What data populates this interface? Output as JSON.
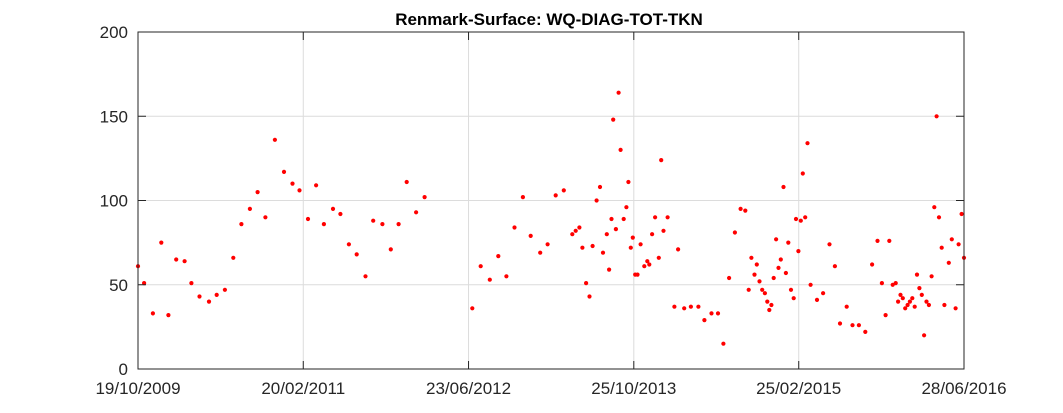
{
  "chart_data": {
    "type": "scatter",
    "title": "Renmark-Surface: WQ-DIAG-TOT-TKN",
    "xlabel": "",
    "ylabel": "",
    "xlim": [
      "2009-10-19",
      "2016-06-28"
    ],
    "ylim": [
      0,
      200
    ],
    "x_ticks": [
      "2009-10-19",
      "2011-02-20",
      "2012-06-23",
      "2013-10-25",
      "2015-02-25",
      "2016-06-28"
    ],
    "x_tick_labels": [
      "19/10/2009",
      "20/02/2011",
      "23/06/2012",
      "25/10/2013",
      "25/02/2015",
      "28/06/2016"
    ],
    "y_ticks": [
      0,
      50,
      100,
      150,
      200
    ],
    "y_tick_labels": [
      "0",
      "50",
      "100",
      "150",
      "200"
    ],
    "grid": true,
    "marker_color": "#ff0000",
    "series": [
      {
        "points": [
          [
            "2009-10-19",
            61
          ],
          [
            "2009-11-06",
            51
          ],
          [
            "2009-12-02",
            33
          ],
          [
            "2009-12-27",
            75
          ],
          [
            "2010-01-17",
            32
          ],
          [
            "2010-02-09",
            65
          ],
          [
            "2010-03-06",
            64
          ],
          [
            "2010-03-26",
            51
          ],
          [
            "2010-04-19",
            43
          ],
          [
            "2010-05-17",
            40
          ],
          [
            "2010-06-09",
            44
          ],
          [
            "2010-07-03",
            47
          ],
          [
            "2010-07-28",
            66
          ],
          [
            "2010-08-21",
            86
          ],
          [
            "2010-09-15",
            95
          ],
          [
            "2010-10-08",
            105
          ],
          [
            "2010-10-31",
            90
          ],
          [
            "2010-11-28",
            136
          ],
          [
            "2010-12-25",
            117
          ],
          [
            "2011-01-19",
            110
          ],
          [
            "2011-02-09",
            106
          ],
          [
            "2011-03-06",
            89
          ],
          [
            "2011-03-30",
            109
          ],
          [
            "2011-04-22",
            86
          ],
          [
            "2011-05-19",
            95
          ],
          [
            "2011-06-10",
            92
          ],
          [
            "2011-07-05",
            74
          ],
          [
            "2011-07-28",
            68
          ],
          [
            "2011-08-23",
            55
          ],
          [
            "2011-09-15",
            88
          ],
          [
            "2011-10-12",
            86
          ],
          [
            "2011-11-06",
            71
          ],
          [
            "2011-11-29",
            86
          ],
          [
            "2011-12-23",
            111
          ],
          [
            "2012-01-20",
            93
          ],
          [
            "2012-02-14",
            102
          ],
          [
            "2012-07-04",
            36
          ],
          [
            "2012-07-29",
            61
          ],
          [
            "2012-08-25",
            53
          ],
          [
            "2012-09-19",
            67
          ],
          [
            "2012-10-13",
            55
          ],
          [
            "2012-11-06",
            84
          ],
          [
            "2012-12-01",
            102
          ],
          [
            "2012-12-24",
            79
          ],
          [
            "2013-01-21",
            69
          ],
          [
            "2013-02-12",
            74
          ],
          [
            "2013-03-08",
            103
          ],
          [
            "2013-04-01",
            106
          ],
          [
            "2013-04-26",
            80
          ],
          [
            "2013-05-06",
            82
          ],
          [
            "2013-05-17",
            84
          ],
          [
            "2013-05-26",
            72
          ],
          [
            "2013-06-06",
            51
          ],
          [
            "2013-06-16",
            43
          ],
          [
            "2013-06-25",
            73
          ],
          [
            "2013-07-07",
            100
          ],
          [
            "2013-07-17",
            108
          ],
          [
            "2013-07-26",
            69
          ],
          [
            "2013-08-06",
            80
          ],
          [
            "2013-08-13",
            59
          ],
          [
            "2013-08-20",
            89
          ],
          [
            "2013-08-25",
            148
          ],
          [
            "2013-09-02",
            83
          ],
          [
            "2013-09-10",
            164
          ],
          [
            "2013-09-16",
            130
          ],
          [
            "2013-09-25",
            89
          ],
          [
            "2013-10-03",
            96
          ],
          [
            "2013-10-09",
            111
          ],
          [
            "2013-10-16",
            72
          ],
          [
            "2013-10-22",
            78
          ],
          [
            "2013-10-29",
            56
          ],
          [
            "2013-11-05",
            56
          ],
          [
            "2013-11-14",
            74
          ],
          [
            "2013-11-25",
            61
          ],
          [
            "2013-12-04",
            64
          ],
          [
            "2013-12-10",
            62
          ],
          [
            "2013-12-18",
            80
          ],
          [
            "2013-12-27",
            90
          ],
          [
            "2014-01-07",
            66
          ],
          [
            "2014-01-14",
            124
          ],
          [
            "2014-01-21",
            82
          ],
          [
            "2014-02-02",
            90
          ],
          [
            "2014-02-22",
            37
          ],
          [
            "2014-03-05",
            71
          ],
          [
            "2014-03-23",
            36
          ],
          [
            "2014-04-12",
            37
          ],
          [
            "2014-05-04",
            37
          ],
          [
            "2014-05-22",
            29
          ],
          [
            "2014-06-12",
            33
          ],
          [
            "2014-07-01",
            33
          ],
          [
            "2014-07-17",
            15
          ],
          [
            "2014-08-03",
            54
          ],
          [
            "2014-08-20",
            81
          ],
          [
            "2014-09-06",
            95
          ],
          [
            "2014-09-20",
            94
          ],
          [
            "2014-09-30",
            47
          ],
          [
            "2014-10-08",
            66
          ],
          [
            "2014-10-17",
            56
          ],
          [
            "2014-10-24",
            62
          ],
          [
            "2014-11-01",
            52
          ],
          [
            "2014-11-09",
            47
          ],
          [
            "2014-11-17",
            45
          ],
          [
            "2014-11-24",
            40
          ],
          [
            "2014-11-30",
            35
          ],
          [
            "2014-12-06",
            38
          ],
          [
            "2014-12-13",
            54
          ],
          [
            "2014-12-20",
            77
          ],
          [
            "2014-12-27",
            60
          ],
          [
            "2015-01-03",
            65
          ],
          [
            "2015-01-11",
            108
          ],
          [
            "2015-01-18",
            57
          ],
          [
            "2015-01-25",
            75
          ],
          [
            "2015-02-02",
            47
          ],
          [
            "2015-02-10",
            42
          ],
          [
            "2015-02-17",
            89
          ],
          [
            "2015-02-24",
            70
          ],
          [
            "2015-03-03",
            88
          ],
          [
            "2015-03-09",
            116
          ],
          [
            "2015-03-16",
            90
          ],
          [
            "2015-03-23",
            134
          ],
          [
            "2015-04-01",
            50
          ],
          [
            "2015-04-20",
            41
          ],
          [
            "2015-05-08",
            45
          ],
          [
            "2015-05-27",
            74
          ],
          [
            "2015-06-12",
            61
          ],
          [
            "2015-06-27",
            27
          ],
          [
            "2015-07-17",
            37
          ],
          [
            "2015-08-03",
            26
          ],
          [
            "2015-08-22",
            26
          ],
          [
            "2015-09-10",
            22
          ],
          [
            "2015-09-30",
            62
          ],
          [
            "2015-10-16",
            76
          ],
          [
            "2015-10-29",
            51
          ],
          [
            "2015-11-09",
            32
          ],
          [
            "2015-11-20",
            76
          ],
          [
            "2015-11-30",
            50
          ],
          [
            "2015-12-09",
            51
          ],
          [
            "2015-12-16",
            40
          ],
          [
            "2015-12-23",
            44
          ],
          [
            "2015-12-30",
            42
          ],
          [
            "2016-01-06",
            36
          ],
          [
            "2016-01-13",
            38
          ],
          [
            "2016-01-20",
            40
          ],
          [
            "2016-01-27",
            42
          ],
          [
            "2016-02-03",
            37
          ],
          [
            "2016-02-10",
            56
          ],
          [
            "2016-02-17",
            48
          ],
          [
            "2016-02-24",
            44
          ],
          [
            "2016-03-02",
            20
          ],
          [
            "2016-03-09",
            40
          ],
          [
            "2016-03-16",
            38
          ],
          [
            "2016-03-24",
            55
          ],
          [
            "2016-04-01",
            96
          ],
          [
            "2016-04-08",
            150
          ],
          [
            "2016-04-15",
            90
          ],
          [
            "2016-04-23",
            72
          ],
          [
            "2016-05-01",
            38
          ],
          [
            "2016-05-14",
            63
          ],
          [
            "2016-05-23",
            77
          ],
          [
            "2016-06-03",
            36
          ],
          [
            "2016-06-12",
            74
          ],
          [
            "2016-06-21",
            92
          ],
          [
            "2016-06-28",
            66
          ]
        ]
      }
    ]
  }
}
